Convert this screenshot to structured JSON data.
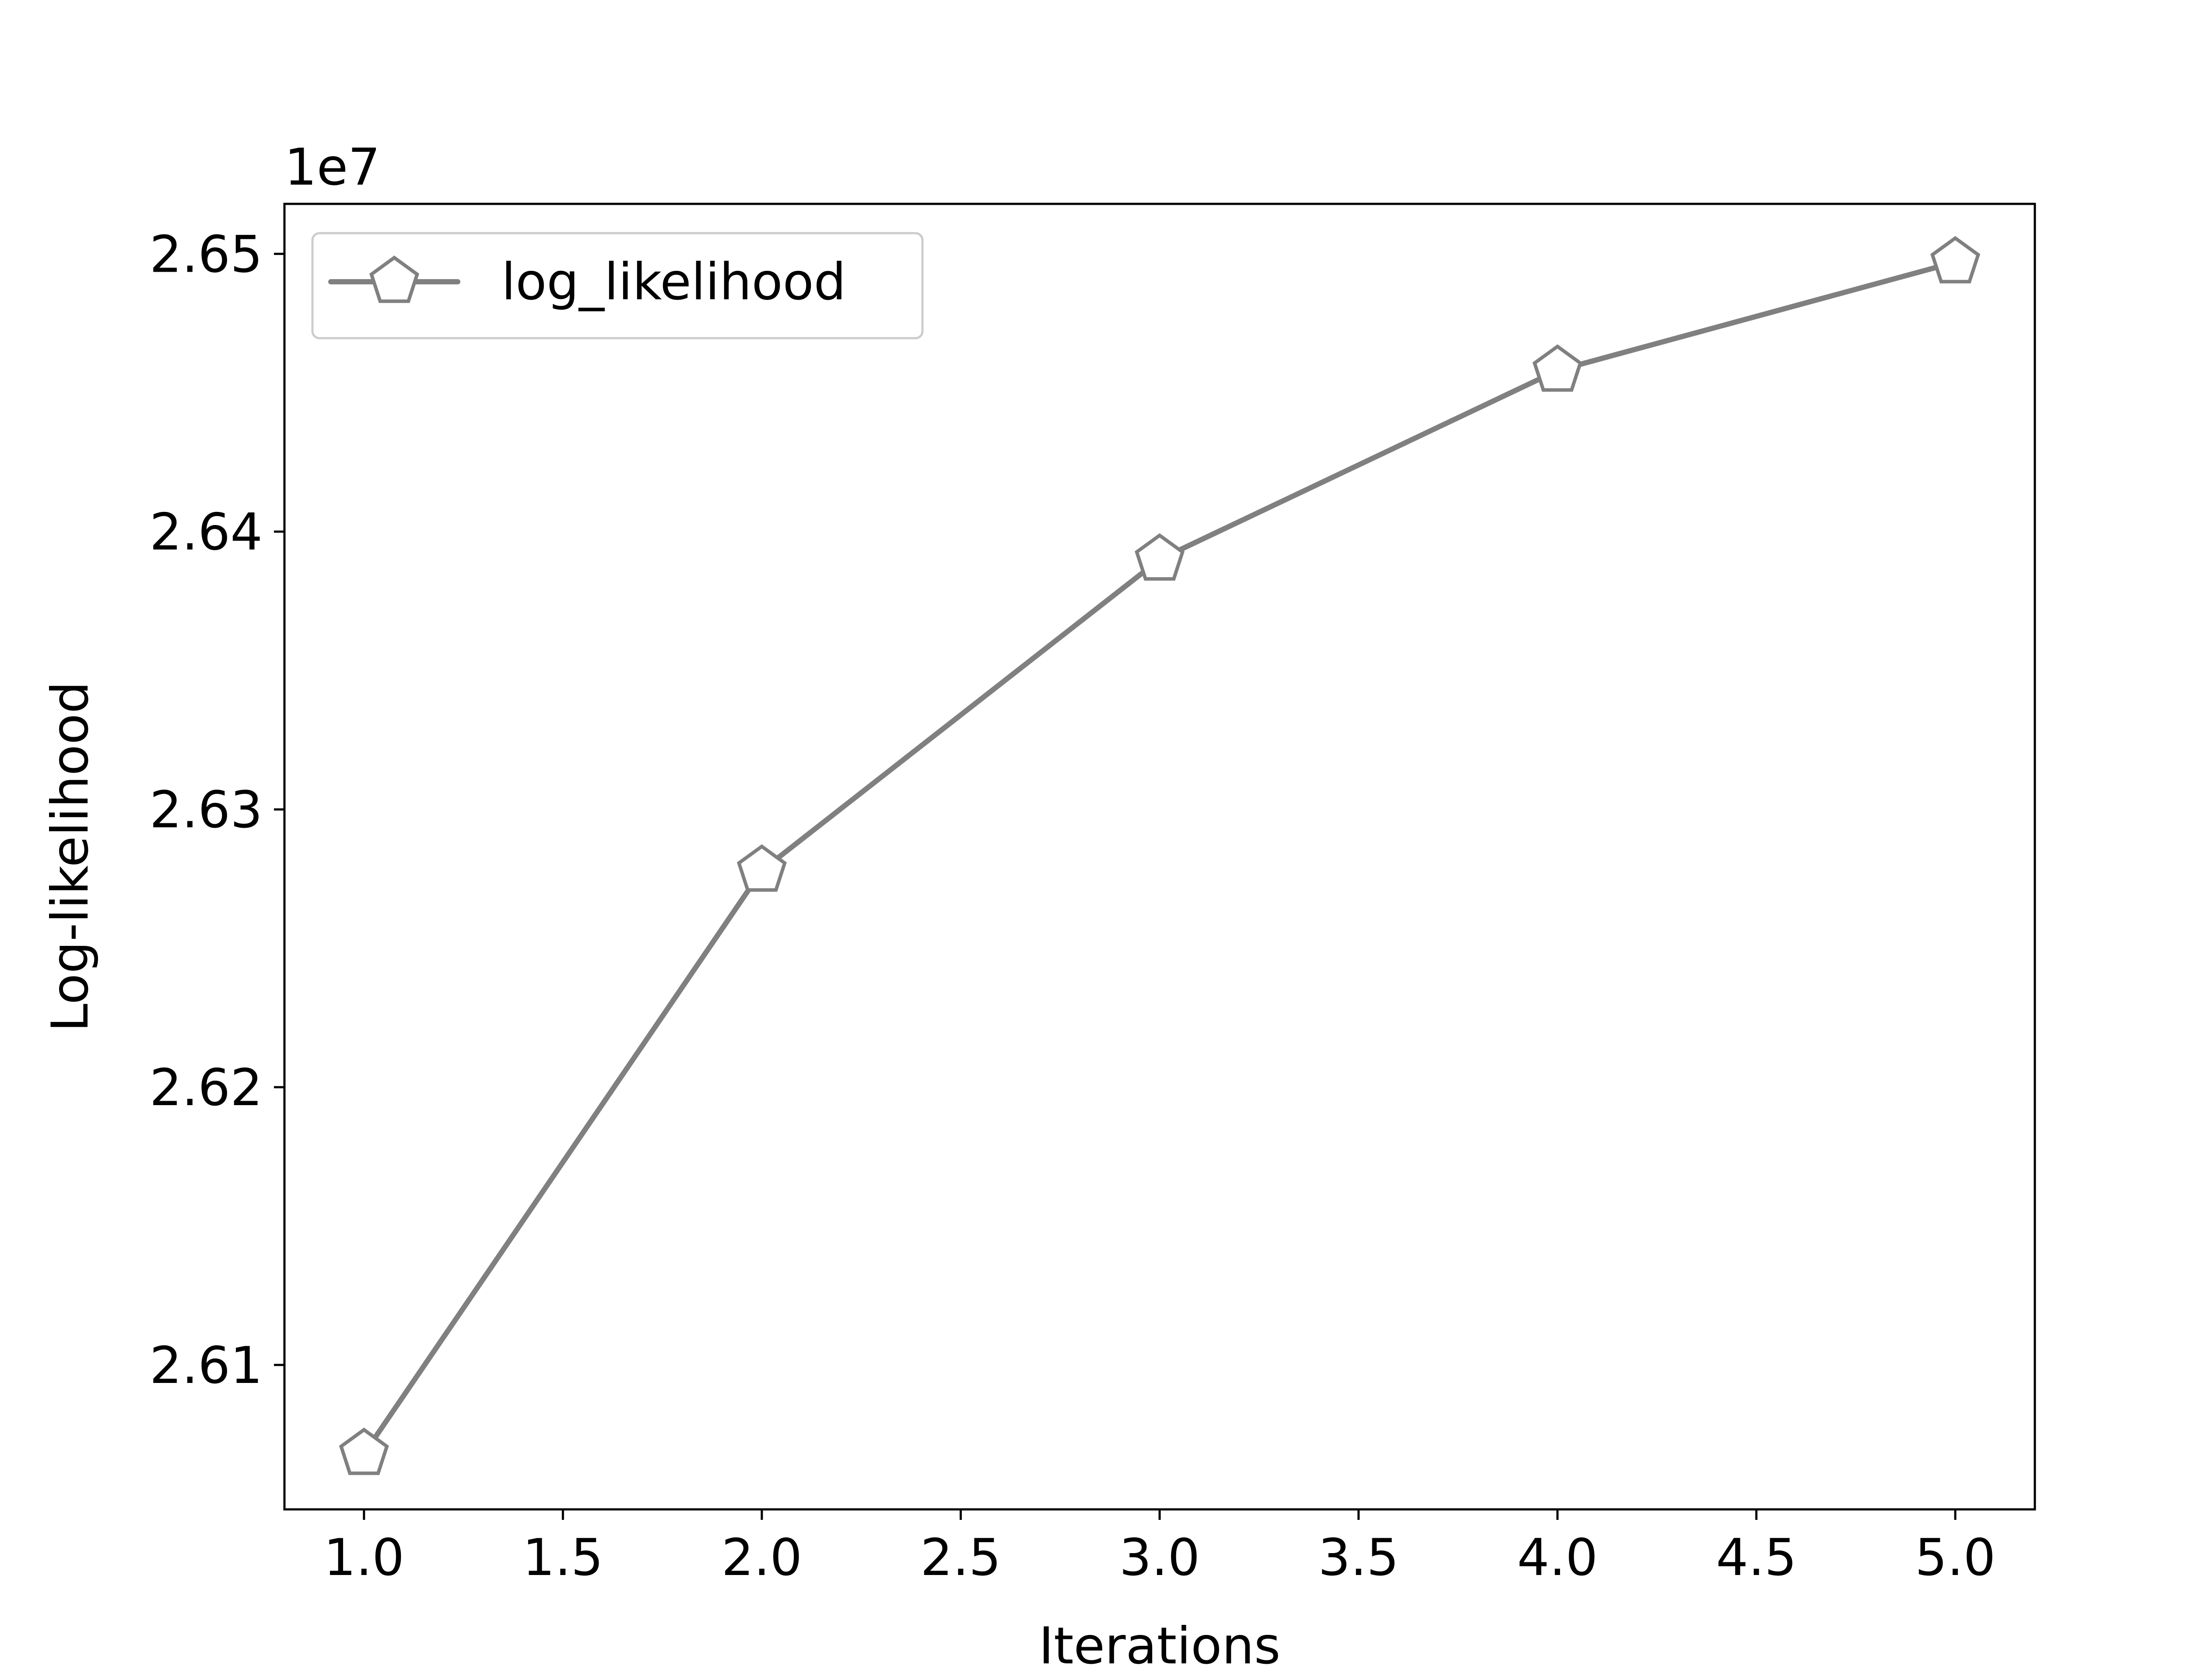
{
  "chart_data": {
    "type": "line",
    "title": "",
    "xlabel": "Iterations",
    "ylabel": "Log-likelihood",
    "y_offset_label": "1e7",
    "x_ticks": [
      "1.0",
      "1.5",
      "2.0",
      "2.5",
      "3.0",
      "3.5",
      "4.0",
      "4.5",
      "5.0"
    ],
    "y_ticks": [
      "2.61",
      "2.62",
      "2.63",
      "2.64",
      "2.65"
    ],
    "xlim": [
      0.8,
      5.2
    ],
    "ylim": [
      2.6048,
      2.6518
    ],
    "grid": false,
    "legend_position": "top-left",
    "series": [
      {
        "name": "log_likelihood",
        "color": "#808080",
        "marker": "pentagon",
        "x": [
          1,
          2,
          3,
          4,
          5
        ],
        "y": [
          2.6068,
          2.6278,
          2.639,
          2.6458,
          2.6497
        ]
      }
    ]
  }
}
